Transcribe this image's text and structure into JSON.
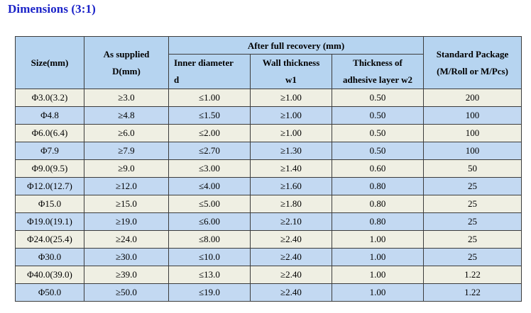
{
  "title": "Dimensions (3:1)",
  "headers": {
    "size": "Size(mm)",
    "supplied_line1": "As supplied",
    "supplied_line2": "D(mm)",
    "recovery": "After full recovery (mm)",
    "inner_line1": "Inner  diameter",
    "inner_line2": "d",
    "wall_line1": "Wall thickness",
    "wall_line2": "w1",
    "adhesive_line1": "Thickness of",
    "adhesive_line2": "adhesive layer w2",
    "package_line1": "Standard Package",
    "package_line2": "(M/Roll or M/Pcs)"
  },
  "rows": [
    {
      "size": "Φ3.0(3.2)",
      "supplied": "≥3.0",
      "inner": "≤1.00",
      "wall": "≥1.00",
      "adhesive": "0.50",
      "package": "200"
    },
    {
      "size": "Φ4.8",
      "supplied": "≥4.8",
      "inner": "≤1.50",
      "wall": "≥1.00",
      "adhesive": "0.50",
      "package": "100"
    },
    {
      "size": "Φ6.0(6.4)",
      "supplied": "≥6.0",
      "inner": "≤2.00",
      "wall": "≥1.00",
      "adhesive": "0.50",
      "package": "100"
    },
    {
      "size": "Φ7.9",
      "supplied": "≥7.9",
      "inner": "≤2.70",
      "wall": "≥1.30",
      "adhesive": "0.50",
      "package": "100"
    },
    {
      "size": "Φ9.0(9.5)",
      "supplied": "≥9.0",
      "inner": "≤3.00",
      "wall": "≥1.40",
      "adhesive": "0.60",
      "package": "50"
    },
    {
      "size": "Φ12.0(12.7)",
      "supplied": "≥12.0",
      "inner": "≤4.00",
      "wall": "≥1.60",
      "adhesive": "0.80",
      "package": "25"
    },
    {
      "size": "Φ15.0",
      "supplied": "≥15.0",
      "inner": "≤5.00",
      "wall": "≥1.80",
      "adhesive": "0.80",
      "package": "25"
    },
    {
      "size": "Φ19.0(19.1)",
      "supplied": "≥19.0",
      "inner": "≤6.00",
      "wall": "≥2.10",
      "adhesive": "0.80",
      "package": "25"
    },
    {
      "size": "Φ24.0(25.4)",
      "supplied": "≥24.0",
      "inner": "≤8.00",
      "wall": "≥2.40",
      "adhesive": "1.00",
      "package": "25"
    },
    {
      "size": "Φ30.0",
      "supplied": "≥30.0",
      "inner": "≤10.0",
      "wall": "≥2.40",
      "adhesive": "1.00",
      "package": "25"
    },
    {
      "size": "Φ40.0(39.0)",
      "supplied": "≥39.0",
      "inner": "≤13.0",
      "wall": "≥2.40",
      "adhesive": "1.00",
      "package": "1.22"
    },
    {
      "size": "Φ50.0",
      "supplied": "≥50.0",
      "inner": "≤19.0",
      "wall": "≥2.40",
      "adhesive": "1.00",
      "package": "1.22"
    }
  ]
}
